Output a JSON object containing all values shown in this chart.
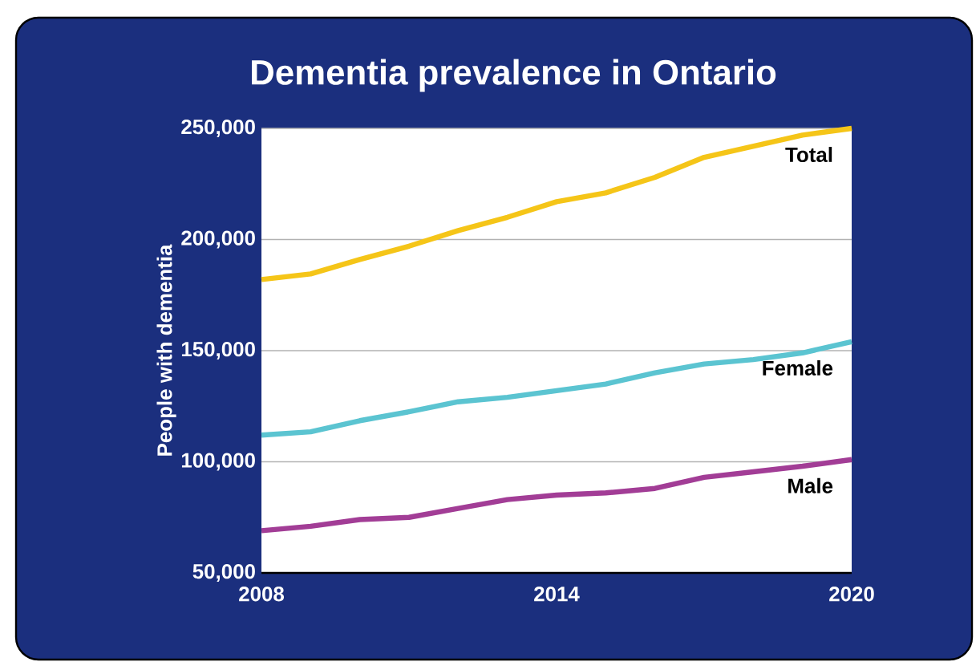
{
  "chart_data": {
    "type": "line",
    "title": "Dementia prevalence in Ontario",
    "ylabel": "People with dementia",
    "x": [
      2008,
      2009,
      2010,
      2011,
      2012,
      2013,
      2014,
      2015,
      2016,
      2017,
      2018,
      2019,
      2020
    ],
    "series": [
      {
        "name": "Total",
        "color": "#f5c518",
        "values": [
          182000,
          184500,
          191000,
          197000,
          204000,
          210000,
          217000,
          221000,
          228000,
          237000,
          242000,
          247000,
          250000
        ]
      },
      {
        "name": "Female",
        "color": "#5bc4d1",
        "values": [
          112000,
          113500,
          118500,
          122500,
          127000,
          129000,
          132000,
          135000,
          140000,
          144000,
          146000,
          149000,
          154000
        ]
      },
      {
        "name": "Male",
        "color": "#a23d96",
        "values": [
          69000,
          71000,
          74000,
          75000,
          79000,
          83000,
          85000,
          86000,
          88000,
          93000,
          95500,
          98000,
          101000
        ]
      }
    ],
    "xlim": [
      2008,
      2020
    ],
    "xticks": [
      2008,
      2014,
      2020
    ],
    "ylim": [
      50000,
      250000
    ],
    "yticks": [
      {
        "value": 50000,
        "label": "50,000"
      },
      {
        "value": 100000,
        "label": "100,000"
      },
      {
        "value": 150000,
        "label": "150,000"
      },
      {
        "value": 200000,
        "label": "200,000"
      },
      {
        "value": 250000,
        "label": "250,000"
      }
    ],
    "grid": "y",
    "legend": false,
    "marker": "none",
    "line_style": "solid"
  }
}
